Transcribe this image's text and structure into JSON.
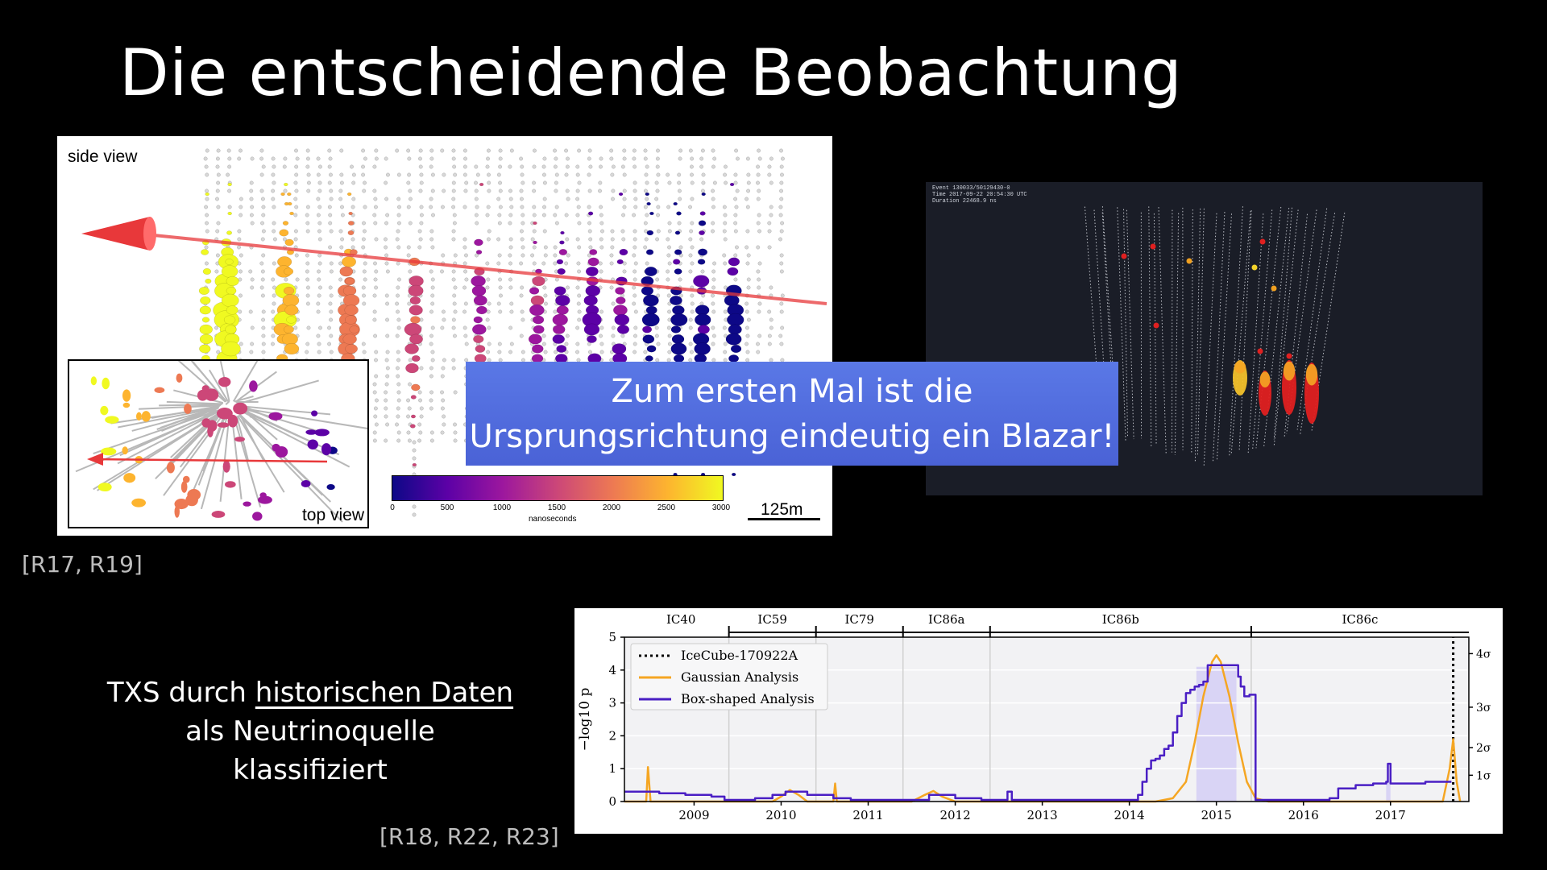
{
  "slide": {
    "title": "Die entscheidende Beobachtung",
    "callout_lines": [
      "Zum ersten Mal ist die",
      "Ursprungsrichtung eindeutig ein Blazar!"
    ],
    "refs_top": "[R17, R19]",
    "refs_bottom": "[R18, R22, R23]",
    "txs_text": {
      "line1_pre": "TXS durch ",
      "line1_underlined": "historischen Daten",
      "line2": "als Neutrinoquelle",
      "line3": "klassifiziert"
    }
  },
  "event_display": {
    "side_view_label": "side view",
    "top_view_label": "top view",
    "colorbar_ticks": [
      "0",
      "500",
      "1000",
      "1500",
      "2000",
      "2500",
      "3000"
    ],
    "colorbar_unit": "nanoseconds",
    "scale_label": "125m",
    "colors": {
      "track": "#e8383a",
      "cmap": [
        "#0d0887",
        "#5c01a6",
        "#9c179e",
        "#cc4778",
        "#ed7953",
        "#fdb42f",
        "#f0f921"
      ]
    }
  },
  "event_3d": {
    "info_lines": [
      "Event 130033/50129430-0",
      "Time 2017-09-22 20:54:30 UTC",
      "Duration 22468.9 ns"
    ]
  },
  "chart_data": {
    "type": "line",
    "xlabel": "",
    "ylabel": "−log10 p",
    "xlim": [
      2008.2,
      2017.9
    ],
    "ylim": [
      0,
      5
    ],
    "x_ticks": [
      2009,
      2010,
      2011,
      2012,
      2013,
      2014,
      2015,
      2016,
      2017
    ],
    "y_ticks": [
      0,
      1,
      2,
      3,
      4,
      5
    ],
    "sigma_ticks": [
      {
        "label": "1σ",
        "y": 0.8
      },
      {
        "label": "2σ",
        "y": 1.64
      },
      {
        "label": "3σ",
        "y": 2.87
      },
      {
        "label": "4σ",
        "y": 4.5
      }
    ],
    "seasons": [
      {
        "label": "IC40",
        "start": 2008.3,
        "end": 2009.4
      },
      {
        "label": "IC59",
        "start": 2009.4,
        "end": 2010.4
      },
      {
        "label": "IC79",
        "start": 2010.4,
        "end": 2011.4
      },
      {
        "label": "IC86a",
        "start": 2011.4,
        "end": 2012.4
      },
      {
        "label": "IC86b",
        "start": 2012.4,
        "end": 2015.4
      },
      {
        "label": "IC86c",
        "start": 2015.4,
        "end": 2017.9
      }
    ],
    "legend_position": "top-left",
    "series": [
      {
        "name": "IceCube-170922A",
        "color": "#000000",
        "style": "dotted",
        "x": [
          2017.72,
          2017.72
        ],
        "y": [
          0,
          5
        ]
      },
      {
        "name": "Gaussian Analysis",
        "color": "#f5a623",
        "x": [
          2008.2,
          2008.45,
          2008.47,
          2008.5,
          2008.53,
          2008.6,
          2009.9,
          2010.0,
          2010.1,
          2010.2,
          2010.3,
          2010.6,
          2010.62,
          2010.64,
          2010.7,
          2011.5,
          2011.65,
          2011.75,
          2011.85,
          2012.0,
          2014.3,
          2014.5,
          2014.65,
          2014.75,
          2014.85,
          2014.95,
          2015.0,
          2015.05,
          2015.15,
          2015.25,
          2015.35,
          2015.45,
          2015.6,
          2017.6,
          2017.68,
          2017.72,
          2017.76,
          2017.8
        ],
        "y": [
          0,
          0,
          1.05,
          0,
          0,
          0,
          0,
          0.15,
          0.35,
          0.2,
          0,
          0,
          0.55,
          0,
          0,
          0,
          0.2,
          0.32,
          0.15,
          0,
          0,
          0.1,
          0.6,
          1.8,
          3.2,
          4.25,
          4.45,
          4.25,
          3.2,
          1.8,
          0.6,
          0.1,
          0,
          0,
          1.0,
          1.9,
          0.6,
          0
        ]
      },
      {
        "name": "Box-shaped Analysis",
        "color": "#4a1fc4",
        "step": true,
        "x": [
          2008.2,
          2008.6,
          2008.9,
          2009.2,
          2009.35,
          2009.7,
          2009.9,
          2010.05,
          2010.3,
          2010.6,
          2010.8,
          2011.2,
          2011.7,
          2012.0,
          2012.3,
          2012.5,
          2012.6,
          2012.65,
          2012.7,
          2013.5,
          2013.9,
          2014.1,
          2014.15,
          2014.2,
          2014.25,
          2014.3,
          2014.35,
          2014.4,
          2014.45,
          2014.5,
          2014.55,
          2014.6,
          2014.65,
          2014.7,
          2014.75,
          2014.8,
          2014.85,
          2014.9,
          2015.2,
          2015.25,
          2015.28,
          2015.32,
          2015.38,
          2015.4,
          2015.45,
          2016.0,
          2016.3,
          2016.4,
          2016.6,
          2016.8,
          2016.95,
          2016.97,
          2017.0,
          2017.4,
          2017.7
        ],
        "y": [
          0.3,
          0.25,
          0.2,
          0.15,
          0.05,
          0.1,
          0.2,
          0.3,
          0.2,
          0.1,
          0.05,
          0.05,
          0.2,
          0.1,
          0.05,
          0.05,
          0.3,
          0.05,
          0.05,
          0.05,
          0.05,
          0.2,
          0.6,
          1.0,
          1.25,
          1.3,
          1.4,
          1.6,
          1.7,
          2.1,
          2.6,
          3.0,
          3.3,
          3.4,
          3.5,
          3.55,
          3.65,
          4.15,
          4.15,
          3.8,
          3.5,
          3.2,
          3.25,
          3.25,
          0.05,
          0.05,
          0.1,
          0.4,
          0.5,
          0.55,
          0.6,
          1.15,
          0.55,
          0.6,
          0.6
        ]
      }
    ]
  }
}
